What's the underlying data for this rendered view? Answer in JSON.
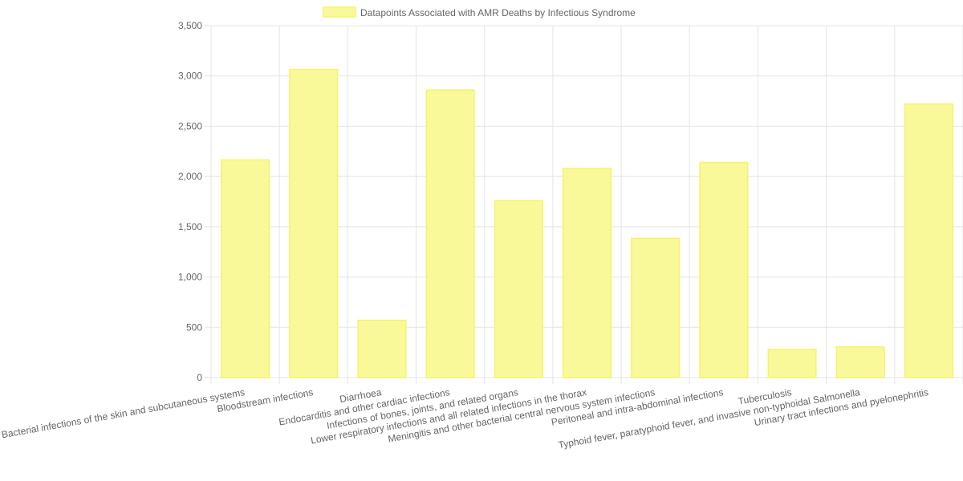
{
  "chart_data": {
    "type": "bar",
    "legend": {
      "label": "Datapoints Associated with AMR Deaths by Infectious Syndrome",
      "position": "top"
    },
    "categories": [
      "Bacterial infections of the skin and subcutaneous systems",
      "Bloodstream infections",
      "Diarrhoea",
      "Endocarditis and other cardiac infections",
      "Infections of bones, joints, and related organs",
      "Lower respiratory infections and all related infections in the thorax",
      "Meningitis and other bacterial central nervous system infections",
      "Peritoneal and intra-abdominal infections",
      "Tuberculosis",
      "Typhoid fever, paratyphoid fever, and invasive non-typhoidal Salmonella",
      "Urinary tract infections and pyelonephritis"
    ],
    "values": [
      2165,
      3065,
      570,
      2860,
      1760,
      2080,
      1385,
      2140,
      280,
      305,
      2720
    ],
    "ylim": [
      0,
      3500
    ],
    "yticks": [
      "0",
      "500",
      "1,000",
      "1,500",
      "2,000",
      "2,500",
      "3,000",
      "3,500"
    ],
    "grid": true,
    "colors": {
      "bar_fill": "#f9f99a",
      "bar_border": "#f4f46a",
      "grid": "#e5e5e5",
      "text": "#666666"
    }
  }
}
